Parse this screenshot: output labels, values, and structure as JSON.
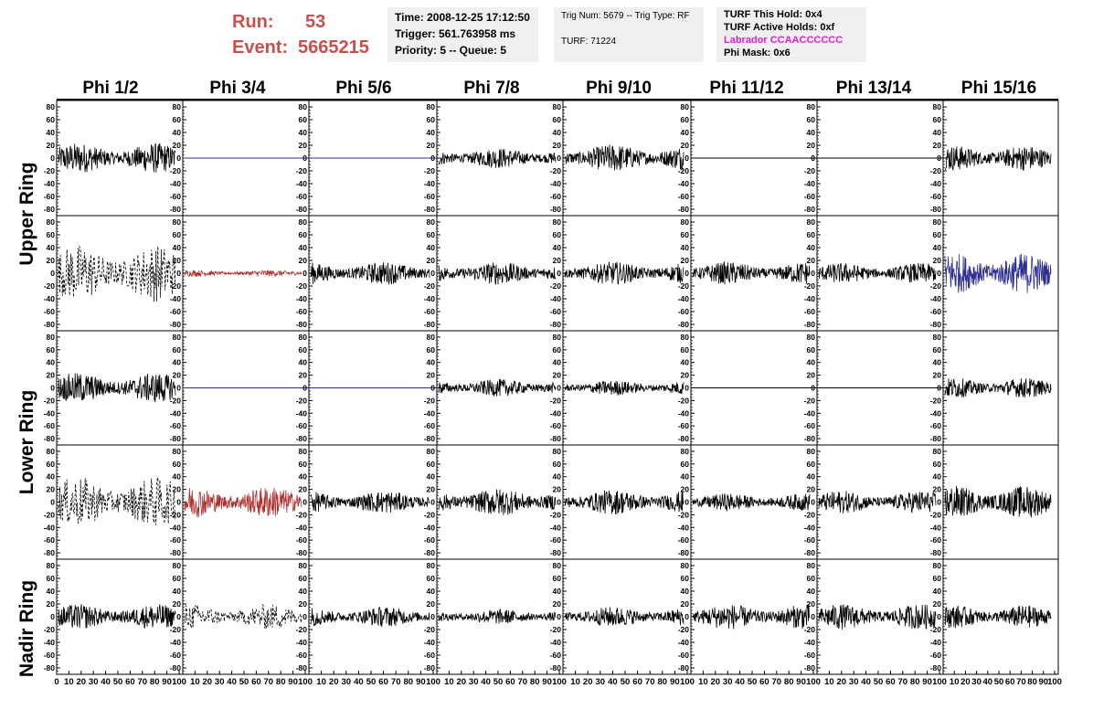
{
  "header": {
    "run_label": "Run:",
    "run_value": "53",
    "event_label": "Event:",
    "event_value": "5665215",
    "time": "Time: 2008-12-25 17:12:50",
    "trigger": "Trigger: 561.763958 ms",
    "priority_queue": "Priority: 5 -- Queue: 5",
    "trig_num_type": "Trig Num: 5679 -- Trig Type: RF",
    "turf": "TURF: 71224",
    "turf_this_hold": "TURF This Hold: 0x4",
    "turf_active_holds": "TURF Active Holds: 0xf",
    "labrador": "Labrador CCAACCCCCC",
    "phi_mask": "Phi Mask: 0x6"
  },
  "columns": [
    "Phi 1/2",
    "Phi 3/4",
    "Phi 5/6",
    "Phi 7/8",
    "Phi 9/10",
    "Phi 11/12",
    "Phi 13/14",
    "Phi 15/16"
  ],
  "ring_labels": [
    "Upper Ring",
    "Lower Ring",
    "Nadir Ring"
  ],
  "colors": {
    "run_text": "#c8504c",
    "box_bg": "#f0f0f0",
    "labrador": "#e020e0",
    "trace": "#000000",
    "red_trace": "#b03030",
    "blue_trace": "#303090",
    "flat_blue": "#2020a0"
  },
  "chart_data": {
    "type": "line",
    "grid": false,
    "ylim": [
      -90,
      90
    ],
    "xlim": [
      0,
      100
    ],
    "y_ticks": [
      80,
      60,
      40,
      20,
      0,
      -20,
      -40,
      -60,
      -80
    ],
    "x_ticks": [
      0,
      10,
      20,
      30,
      40,
      50,
      60,
      70,
      80,
      90,
      100
    ],
    "y_tick_labels": [
      "80",
      "60",
      "40",
      "20",
      "0",
      "-20",
      "-40",
      "-60",
      "-80"
    ],
    "x_tick_labels": [
      "0",
      "10",
      "20",
      "30",
      "40",
      "50",
      "60",
      "70",
      "80",
      "90",
      "100"
    ],
    "panels": [
      [
        {
          "style": "noise",
          "amp": 24,
          "color": "black"
        },
        {
          "style": "flat",
          "color": "blue"
        },
        {
          "style": "flat",
          "color": "blue"
        },
        {
          "style": "noise",
          "amp": 16,
          "color": "black"
        },
        {
          "style": "noise",
          "amp": 22,
          "color": "black"
        },
        {
          "style": "flat",
          "color": "black"
        },
        {
          "style": "flat",
          "color": "black"
        },
        {
          "style": "noise",
          "amp": 20,
          "color": "black"
        }
      ],
      [
        {
          "style": "dashed",
          "amp": 45,
          "color": "black"
        },
        {
          "style": "noise",
          "amp": 5,
          "color": "red"
        },
        {
          "style": "noise",
          "amp": 18,
          "color": "black"
        },
        {
          "style": "noise",
          "amp": 18,
          "color": "black"
        },
        {
          "style": "noise",
          "amp": 18,
          "color": "black"
        },
        {
          "style": "noise",
          "amp": 18,
          "color": "black"
        },
        {
          "style": "noise",
          "amp": 16,
          "color": "black"
        },
        {
          "style": "noise",
          "amp": 32,
          "color": "blue"
        }
      ],
      [
        {
          "style": "noise",
          "amp": 24,
          "color": "black"
        },
        {
          "style": "flat",
          "color": "blue"
        },
        {
          "style": "flat",
          "color": "blue"
        },
        {
          "style": "noise",
          "amp": 14,
          "color": "black"
        },
        {
          "style": "noise",
          "amp": 12,
          "color": "black"
        },
        {
          "style": "flat",
          "color": "black"
        },
        {
          "style": "flat",
          "color": "black"
        },
        {
          "style": "noise",
          "amp": 16,
          "color": "black"
        }
      ],
      [
        {
          "style": "dashed",
          "amp": 40,
          "color": "black"
        },
        {
          "style": "noise",
          "amp": 25,
          "color": "red"
        },
        {
          "style": "noise",
          "amp": 18,
          "color": "black"
        },
        {
          "style": "noise",
          "amp": 22,
          "color": "black"
        },
        {
          "style": "noise",
          "amp": 20,
          "color": "black"
        },
        {
          "style": "noise",
          "amp": 14,
          "color": "black"
        },
        {
          "style": "noise",
          "amp": 18,
          "color": "black"
        },
        {
          "style": "noise",
          "amp": 26,
          "color": "black"
        }
      ],
      [
        {
          "style": "noise",
          "amp": 20,
          "color": "black"
        },
        {
          "style": "dashed",
          "amp": 20,
          "color": "black"
        },
        {
          "style": "noise",
          "amp": 16,
          "color": "black"
        },
        {
          "style": "noise",
          "amp": 12,
          "color": "black"
        },
        {
          "style": "noise",
          "amp": 16,
          "color": "black"
        },
        {
          "style": "noise",
          "amp": 20,
          "color": "black"
        },
        {
          "style": "noise",
          "amp": 20,
          "color": "black"
        },
        {
          "style": "noise",
          "amp": 18,
          "color": "black"
        }
      ]
    ]
  }
}
